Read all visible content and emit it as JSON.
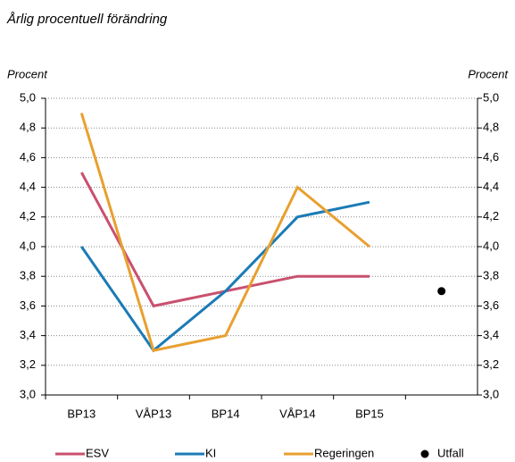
{
  "chart_data": {
    "type": "line",
    "title": "Årlig procentuell förändring",
    "ylabel": "Procent",
    "y2label": "Procent",
    "categories": [
      "BP13",
      "VÅP13",
      "BP14",
      "VÅP14",
      "BP15",
      null
    ],
    "series": [
      {
        "name": "ESV",
        "color": "#c9506f",
        "values": [
          4.5,
          3.6,
          3.7,
          3.8,
          3.8,
          null
        ]
      },
      {
        "name": "KI",
        "color": "#1b7bb5",
        "values": [
          4.0,
          3.3,
          3.7,
          4.2,
          4.3,
          null
        ]
      },
      {
        "name": "Regeringen",
        "color": "#e8a030",
        "values": [
          4.9,
          3.3,
          3.4,
          4.4,
          4.0,
          null
        ]
      },
      {
        "name": "Utfall",
        "color": "#000000",
        "marker": "dot",
        "values": [
          null,
          null,
          null,
          null,
          null,
          3.7
        ]
      }
    ],
    "ylim": [
      3.0,
      5.0
    ],
    "yticks": [
      {
        "value": 3.0,
        "label": "3,0"
      },
      {
        "value": 3.2,
        "label": "3,2"
      },
      {
        "value": 3.4,
        "label": "3,4"
      },
      {
        "value": 3.6,
        "label": "3,6"
      },
      {
        "value": 3.8,
        "label": "3,8"
      },
      {
        "value": 4.0,
        "label": "4,0"
      },
      {
        "value": 4.2,
        "label": "4,2"
      },
      {
        "value": 4.4,
        "label": "4,4"
      },
      {
        "value": 4.6,
        "label": "4,6"
      },
      {
        "value": 4.8,
        "label": "4,8"
      },
      {
        "value": 5.0,
        "label": "5,0"
      }
    ],
    "y2lim": [
      3.0,
      5.0
    ],
    "y2ticks": [
      {
        "value": 3.0,
        "label": "3,0"
      },
      {
        "value": 3.2,
        "label": "3,2"
      },
      {
        "value": 3.4,
        "label": "3,4"
      },
      {
        "value": 3.6,
        "label": "3,6"
      },
      {
        "value": 3.8,
        "label": "3,8"
      },
      {
        "value": 4.0,
        "label": "4,0"
      },
      {
        "value": 4.2,
        "label": "4,2"
      },
      {
        "value": 4.4,
        "label": "4,4"
      },
      {
        "value": 4.6,
        "label": "4,6"
      },
      {
        "value": 4.8,
        "label": "4,8"
      },
      {
        "value": 5.0,
        "label": "5,0"
      }
    ],
    "grid": true,
    "legend": "bottom"
  }
}
